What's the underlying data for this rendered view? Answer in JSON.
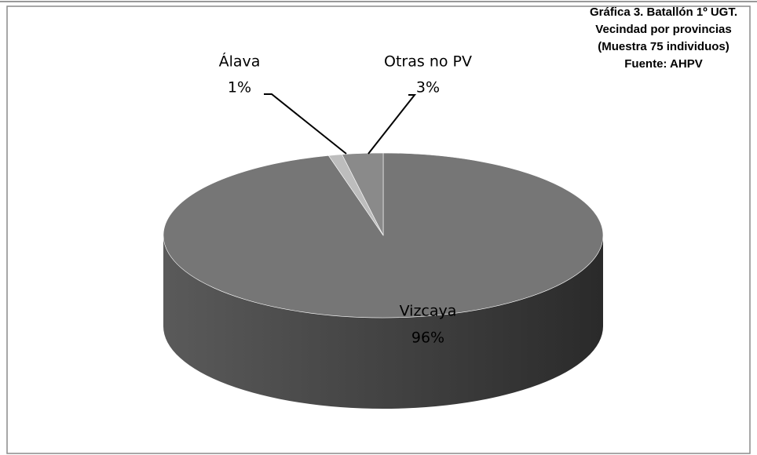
{
  "chart_data": {
    "type": "pie3d",
    "title": [
      "Gráfica 3. Batallón 1º UGT.",
      "Vecindad por provincias",
      "(Muestra 75 individuos)",
      "Fuente: AHPV"
    ],
    "categories": [
      "Vizcaya",
      "Álava",
      "Otras no PV"
    ],
    "values": [
      96,
      1,
      3
    ],
    "value_labels": [
      "96%",
      "1%",
      "3%"
    ],
    "colors": [
      "#767676",
      "#bdbdbd",
      "#8a8a8a"
    ]
  }
}
